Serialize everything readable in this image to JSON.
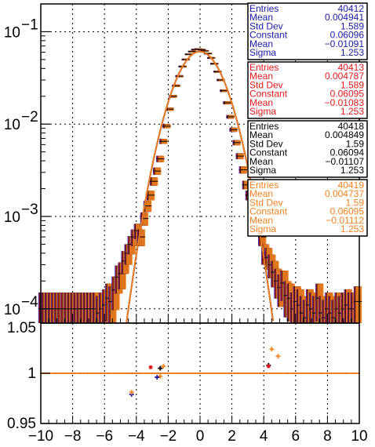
{
  "chart_data": [
    {
      "type": "scatter",
      "panel": "main",
      "xlim": [
        -10,
        10
      ],
      "ylim": [
        7e-05,
        0.2
      ],
      "y_scale": "log",
      "grid": true,
      "y_ticks": [
        {
          "value": 0.1,
          "label": "10",
          "exp": "−1"
        },
        {
          "value": 0.01,
          "label": "10",
          "exp": "−2"
        },
        {
          "value": 0.001,
          "label": "10",
          "exp": "−3"
        },
        {
          "value": 0.0001,
          "label": "10",
          "exp": "−4"
        }
      ],
      "fit_gaussian": {
        "constant": 0.06095,
        "mean": -0.0109,
        "sigma": 1.253
      },
      "series": [
        {
          "color": "#1a1aa8",
          "stats": {
            "Entries": "40412",
            "Mean": "0.004941",
            "Std Dev": "1.589",
            "Constant": "0.06096",
            "Mean_fit": "−0.01091",
            "Sigma": "1.253"
          }
        },
        {
          "color": "#e8191c",
          "stats": {
            "Entries": "40413",
            "Mean": "0.004787",
            "Std Dev": "1.589",
            "Constant": "0.06095",
            "Mean_fit": "−0.01083",
            "Sigma": "1.253"
          }
        },
        {
          "color": "#000000",
          "stats": {
            "Entries": "40418",
            "Mean": "0.004849",
            "Std Dev": "1.59",
            "Constant": "0.06094",
            "Mean_fit": "−0.01107",
            "Sigma": "1.253"
          }
        },
        {
          "color": "#f58220",
          "stats": {
            "Entries": "40419",
            "Mean": "0.004737",
            "Std Dev": "1.59",
            "Constant": "0.06095",
            "Mean_fit": "−0.01112",
            "Sigma": "1.253"
          }
        }
      ],
      "x": [
        -9.9,
        -9.7,
        -9.5,
        -9.3,
        -9.1,
        -8.9,
        -8.7,
        -8.5,
        -8.3,
        -8.1,
        -7.9,
        -7.7,
        -7.5,
        -7.3,
        -7.1,
        -6.9,
        -6.7,
        -6.5,
        -6.3,
        -6.1,
        -5.9,
        -5.7,
        -5.5,
        -5.3,
        -5.1,
        -4.9,
        -4.7,
        -4.5,
        -4.3,
        -4.1,
        -3.9,
        -3.7,
        -3.5,
        -3.3,
        -3.1,
        -2.9,
        -2.7,
        -2.5,
        -2.3,
        -2.1,
        -1.9,
        -1.7,
        -1.5,
        -1.3,
        -1.1,
        -0.9,
        -0.7,
        -0.5,
        -0.3,
        -0.1,
        0.1,
        0.3,
        0.5,
        0.7,
        0.9,
        1.1,
        1.3,
        1.5,
        1.7,
        1.9,
        2.1,
        2.3,
        2.5,
        2.7,
        2.9,
        3.1,
        3.3,
        3.5,
        3.7,
        3.9,
        4.1,
        4.3,
        4.5,
        4.7,
        4.9,
        5.1,
        5.3,
        5.5,
        5.7,
        5.9,
        6.1,
        6.3,
        6.5,
        6.7,
        6.9,
        7.1,
        7.3,
        7.5,
        7.7,
        7.9,
        8.1,
        8.3,
        8.5,
        8.7,
        8.9,
        9.1,
        9.3,
        9.5,
        9.7,
        9.9
      ],
      "y": [
        0.0001,
        0.0001,
        0.0001,
        0.0001,
        0.0001,
        0.0001,
        0.0001,
        0.0001,
        0.0001,
        0.0001,
        0.0001,
        0.0001,
        0.0001,
        0.0001,
        0.0001,
        0.0001,
        0.0001,
        0.0001,
        9e-05,
        0.0001,
        0.00011,
        0.00013,
        0.00012,
        0.00016,
        0.00022,
        0.00024,
        0.00033,
        0.0004,
        0.0005,
        0.0006,
        0.0007,
        0.0006,
        0.00095,
        0.0013,
        0.0017,
        0.0024,
        0.0031,
        0.0042,
        0.0065,
        0.0095,
        0.0145,
        0.02,
        0.026,
        0.033,
        0.042,
        0.05,
        0.057,
        0.061,
        0.064,
        0.065,
        0.064,
        0.062,
        0.058,
        0.052,
        0.045,
        0.037,
        0.03,
        0.023,
        0.017,
        0.012,
        0.0087,
        0.0063,
        0.0045,
        0.0032,
        0.0022,
        0.0017,
        0.0012,
        0.0011,
        0.0008,
        0.0006,
        0.0004,
        0.00036,
        0.0003,
        0.00025,
        0.0002,
        0.00017,
        0.00019,
        0.00014,
        0.00013,
        0.0001,
        0.00012,
        0.00011,
        9e-05,
        8e-05,
        0.00011,
        0.0001,
        9e-05,
        0.00013,
        9e-05,
        8e-05,
        0.0001,
        9e-05,
        8e-05,
        0.0001,
        9e-05,
        0.0001,
        0.00011,
        0.0001,
        0.0001,
        0.00012
      ]
    },
    {
      "type": "scatter",
      "panel": "ratio",
      "xlim": [
        -10,
        10
      ],
      "ylim": [
        0.95,
        1.05
      ],
      "grid": true,
      "x_ticks": [
        "−10",
        "−8",
        "−6",
        "−4",
        "−2",
        "0",
        "2",
        "4",
        "6",
        "8",
        "10"
      ],
      "y_ticks": [
        "1.05",
        "1",
        "0.95"
      ],
      "reference_line": 1,
      "points": [
        {
          "x": -4.3,
          "y": 0.979,
          "color": "#1a1aa8"
        },
        {
          "x": -4.3,
          "y": 0.981,
          "color": "#f58220"
        },
        {
          "x": -3.1,
          "y": 1.006,
          "color": "#e8191c"
        },
        {
          "x": -2.5,
          "y": 1.005,
          "color": "#000000"
        },
        {
          "x": -2.3,
          "y": 1.007,
          "color": "#f58220"
        },
        {
          "x": -2.5,
          "y": 0.997,
          "color": "#f58220"
        },
        {
          "x": -2.7,
          "y": 0.996,
          "color": "#1a1aa8"
        },
        {
          "x": 4.3,
          "y": 1.008,
          "color": "#000000"
        },
        {
          "x": 4.3,
          "y": 1.007,
          "color": "#e8191c"
        },
        {
          "x": 4.5,
          "y": 1.024,
          "color": "#f58220"
        },
        {
          "x": 4.9,
          "y": 1.017,
          "color": "#f58220"
        }
      ]
    }
  ]
}
